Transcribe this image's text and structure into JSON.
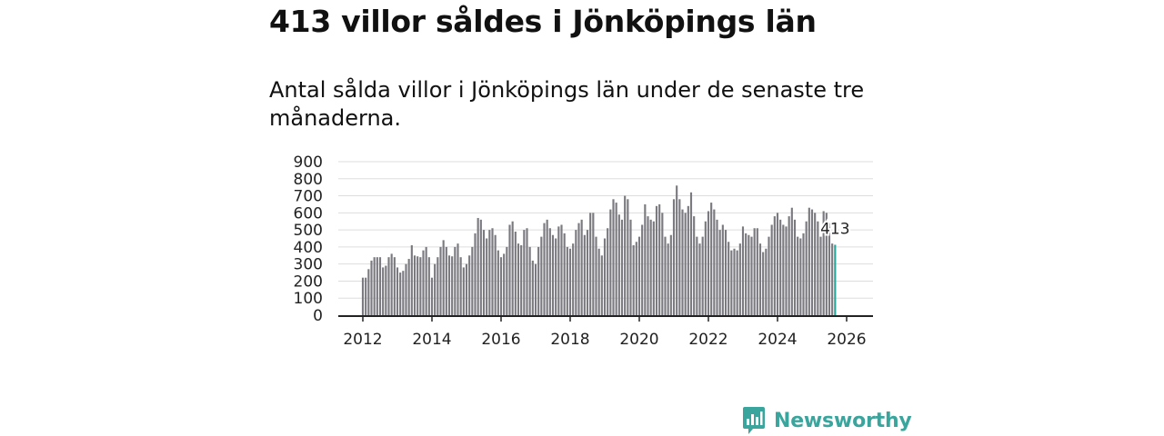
{
  "headline": "413 villor såldes i Jönköpings län",
  "subtitle": "Antal sålda villor i Jönköpings län under de senaste tre månaderna.",
  "brand": {
    "name": "Newsworthy",
    "icon": "bar-chart-speech-bubble-icon",
    "color": "#3aa59c"
  },
  "colors": {
    "bar": "#7a7a80",
    "highlight": "#2aa39a",
    "grid": "#dddddd",
    "axis": "#222222"
  },
  "chart_data": {
    "type": "bar",
    "title": "413 villor såldes i Jönköpings län",
    "xlabel": "",
    "ylabel": "",
    "ylim": [
      0,
      900
    ],
    "yticks": [
      "0",
      "100",
      "200",
      "300",
      "400",
      "500",
      "600",
      "700",
      "800",
      "900"
    ],
    "xticks": [
      "2012",
      "2014",
      "2016",
      "2018",
      "2020",
      "2022",
      "2024",
      "2026"
    ],
    "x_start": "2012-01",
    "x_end": "2026-01",
    "grid": true,
    "annotation": {
      "label": "413",
      "value": 413,
      "x": "2026-01"
    },
    "values": [
      220,
      220,
      270,
      320,
      340,
      340,
      340,
      280,
      290,
      340,
      360,
      340,
      280,
      250,
      260,
      300,
      330,
      410,
      350,
      345,
      340,
      380,
      400,
      340,
      220,
      300,
      340,
      400,
      440,
      400,
      350,
      345,
      400,
      420,
      340,
      280,
      300,
      350,
      400,
      480,
      570,
      560,
      500,
      450,
      500,
      510,
      470,
      380,
      340,
      360,
      400,
      530,
      550,
      490,
      420,
      410,
      500,
      510,
      400,
      320,
      300,
      400,
      460,
      540,
      560,
      510,
      470,
      450,
      520,
      530,
      480,
      400,
      390,
      420,
      500,
      540,
      560,
      470,
      500,
      600,
      600,
      460,
      390,
      350,
      450,
      510,
      620,
      680,
      660,
      590,
      560,
      700,
      680,
      560,
      410,
      430,
      460,
      530,
      650,
      580,
      560,
      550,
      640,
      650,
      600,
      460,
      420,
      470,
      680,
      760,
      680,
      620,
      600,
      640,
      720,
      580,
      460,
      420,
      460,
      550,
      610,
      660,
      620,
      560,
      500,
      530,
      500,
      430,
      380,
      390,
      380,
      420,
      520,
      480,
      470,
      460,
      510,
      510,
      420,
      370,
      390,
      460,
      530,
      580,
      600,
      560,
      530,
      520,
      580,
      630,
      560,
      460,
      450,
      480,
      550,
      630,
      620,
      600,
      550,
      460,
      610,
      600,
      540,
      420,
      413
    ]
  }
}
